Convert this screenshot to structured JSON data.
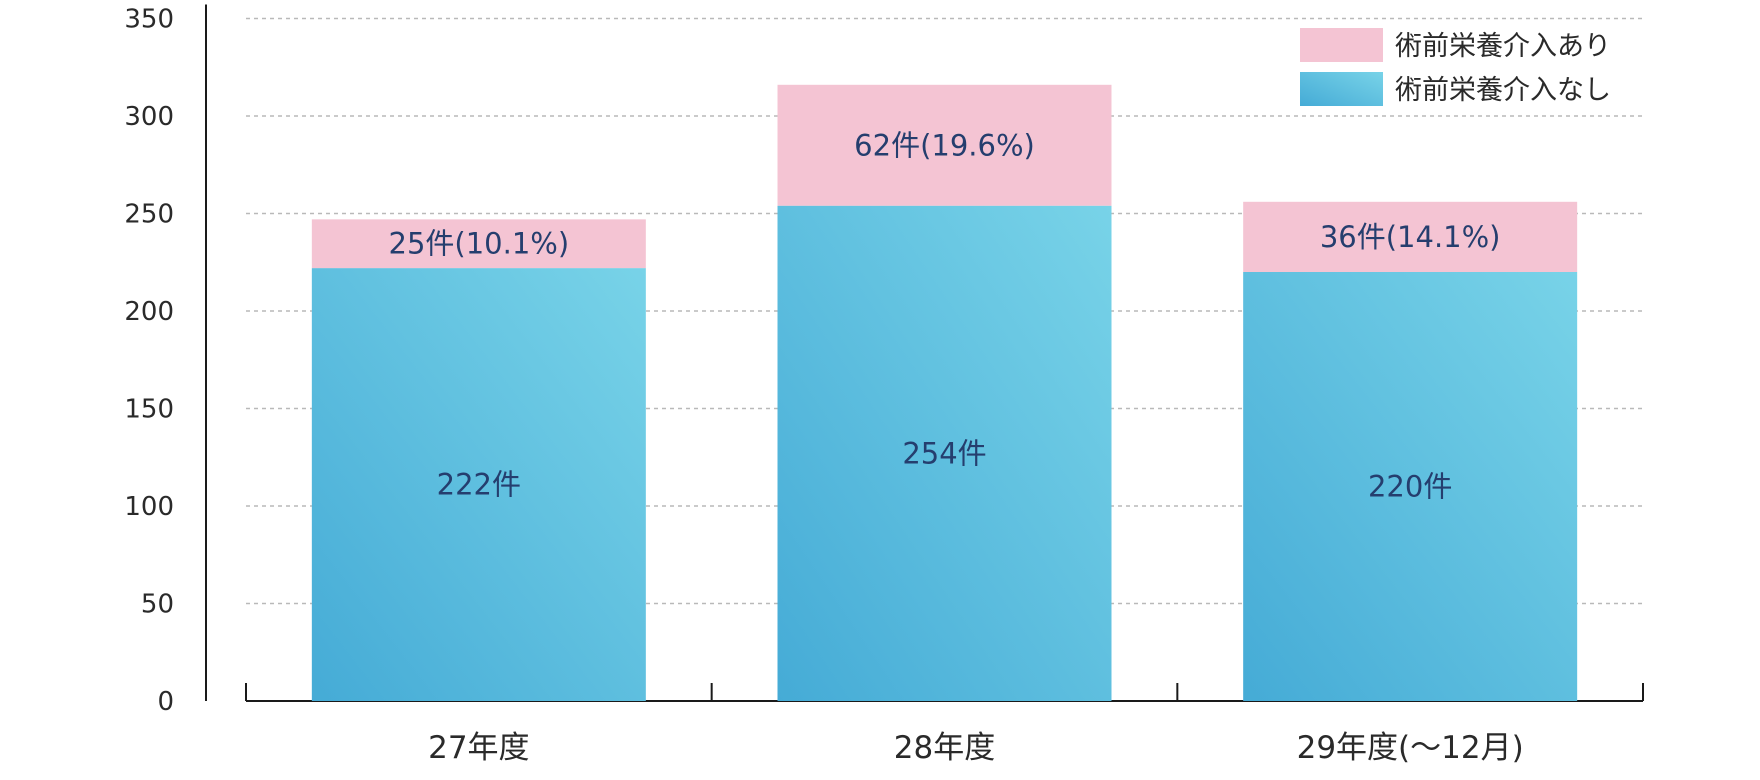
{
  "chart_data": {
    "type": "bar",
    "stacked": true,
    "categories": [
      "27年度",
      "28年度",
      "29年度(〜12月)"
    ],
    "series": [
      {
        "name": "術前栄養介入なし",
        "values": [
          222,
          254,
          220
        ],
        "labels": [
          "222件",
          "254件",
          "220件"
        ],
        "color": "#5bbfe0"
      },
      {
        "name": "術前栄養介入あり",
        "values": [
          25,
          62,
          36
        ],
        "labels": [
          "25件(10.1%)",
          "62件(19.6%)",
          "36件(14.1%)"
        ],
        "color": "#f4c4d3"
      }
    ],
    "title": "",
    "xlabel": "",
    "ylabel": "",
    "ylim": [
      0,
      350
    ],
    "yticks": [
      "0",
      "50",
      "100",
      "150",
      "200",
      "250",
      "300",
      "350"
    ],
    "grid": true,
    "legend_position": "top-right"
  }
}
